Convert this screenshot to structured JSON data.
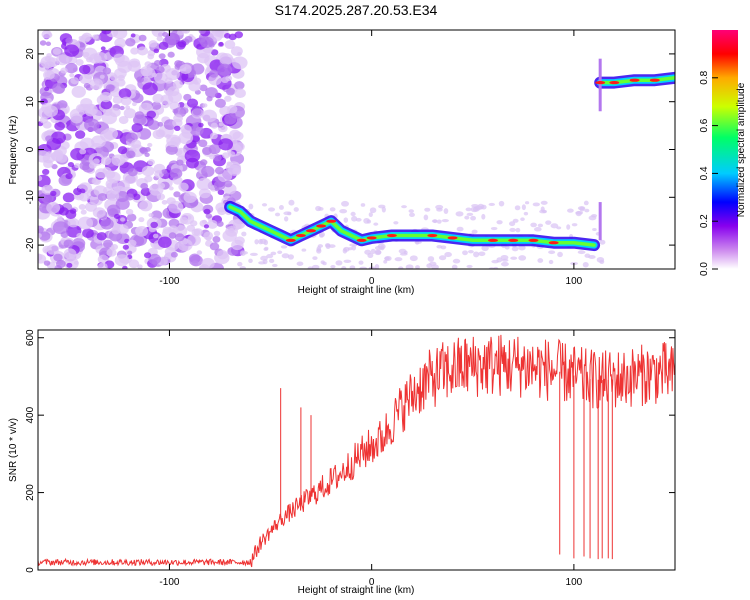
{
  "title": "S174.2025.287.20.53.E34",
  "chart_data": [
    {
      "type": "heatmap",
      "xlabel": "Height of straight line (km)",
      "ylabel": "Frequency (Hz)",
      "xlim": [
        -165,
        150
      ],
      "ylim": [
        -25,
        25
      ],
      "x_ticks": [
        -100,
        0,
        100
      ],
      "y_ticks": [
        -20,
        -10,
        0,
        10,
        20
      ],
      "colorbar": {
        "label": "Normalized spectral amplitude",
        "range": [
          0,
          1
        ],
        "ticks": [
          "0.0",
          "0.2",
          "0.4",
          "0.6",
          "0.8"
        ],
        "colormap": [
          "#ffffff",
          "#cc88ee",
          "#8800ee",
          "#0000ff",
          "#00ccff",
          "#00ff66",
          "#ccff00",
          "#ffaa00",
          "#ff0000",
          "#ff0077"
        ]
      },
      "noise_region_x": [
        -165,
        -65
      ],
      "signal_track": [
        {
          "x": -70,
          "y": -12
        },
        {
          "x": -65,
          "y": -13
        },
        {
          "x": -60,
          "y": -15
        },
        {
          "x": -55,
          "y": -16
        },
        {
          "x": -50,
          "y": -17
        },
        {
          "x": -45,
          "y": -18
        },
        {
          "x": -40,
          "y": -19
        },
        {
          "x": -35,
          "y": -18
        },
        {
          "x": -30,
          "y": -17
        },
        {
          "x": -25,
          "y": -16
        },
        {
          "x": -20,
          "y": -15
        },
        {
          "x": -15,
          "y": -17
        },
        {
          "x": -10,
          "y": -18
        },
        {
          "x": -5,
          "y": -19
        },
        {
          "x": 0,
          "y": -18.5
        },
        {
          "x": 10,
          "y": -18
        },
        {
          "x": 20,
          "y": -18
        },
        {
          "x": 30,
          "y": -18
        },
        {
          "x": 40,
          "y": -18.5
        },
        {
          "x": 50,
          "y": -19
        },
        {
          "x": 60,
          "y": -19
        },
        {
          "x": 70,
          "y": -19
        },
        {
          "x": 80,
          "y": -19
        },
        {
          "x": 90,
          "y": -19.5
        },
        {
          "x": 100,
          "y": -19.5
        },
        {
          "x": 110,
          "y": -20
        }
      ],
      "upper_track": [
        {
          "x": 113,
          "y": 14
        },
        {
          "x": 120,
          "y": 14
        },
        {
          "x": 130,
          "y": 14.5
        },
        {
          "x": 140,
          "y": 14.5
        },
        {
          "x": 150,
          "y": 15
        }
      ]
    },
    {
      "type": "line",
      "xlabel": "Height of straight line (km)",
      "ylabel": "SNR (10 * v/v)",
      "xlim": [
        -165,
        150
      ],
      "ylim": [
        0,
        620
      ],
      "x_ticks": [
        -100,
        0,
        100
      ],
      "y_ticks": [
        0,
        200,
        400,
        600
      ],
      "series_color": "#ee3333",
      "trend": [
        {
          "x": -165,
          "y": 20
        },
        {
          "x": -60,
          "y": 20
        },
        {
          "x": -55,
          "y": 70
        },
        {
          "x": -45,
          "y": 130
        },
        {
          "x": -35,
          "y": 170
        },
        {
          "x": -25,
          "y": 210
        },
        {
          "x": -15,
          "y": 250
        },
        {
          "x": -5,
          "y": 300
        },
        {
          "x": 5,
          "y": 340
        },
        {
          "x": 15,
          "y": 420
        },
        {
          "x": 25,
          "y": 480
        },
        {
          "x": 35,
          "y": 510
        },
        {
          "x": 45,
          "y": 525
        },
        {
          "x": 55,
          "y": 530
        },
        {
          "x": 65,
          "y": 530
        },
        {
          "x": 75,
          "y": 528
        },
        {
          "x": 85,
          "y": 520
        },
        {
          "x": 95,
          "y": 510
        },
        {
          "x": 105,
          "y": 495
        },
        {
          "x": 115,
          "y": 490
        },
        {
          "x": 125,
          "y": 495
        },
        {
          "x": 135,
          "y": 505
        },
        {
          "x": 145,
          "y": 510
        },
        {
          "x": 150,
          "y": 500
        }
      ],
      "spikes": [
        {
          "x": -45,
          "y": 470
        },
        {
          "x": -35,
          "y": 420
        },
        {
          "x": -30,
          "y": 400
        }
      ],
      "dropouts": [
        {
          "x": 93,
          "y": 40
        },
        {
          "x": 100,
          "y": 30
        },
        {
          "x": 105,
          "y": 35
        },
        {
          "x": 108,
          "y": 30
        },
        {
          "x": 112,
          "y": 28
        },
        {
          "x": 114,
          "y": 30
        },
        {
          "x": 117,
          "y": 30
        },
        {
          "x": 119,
          "y": 28
        }
      ]
    }
  ]
}
